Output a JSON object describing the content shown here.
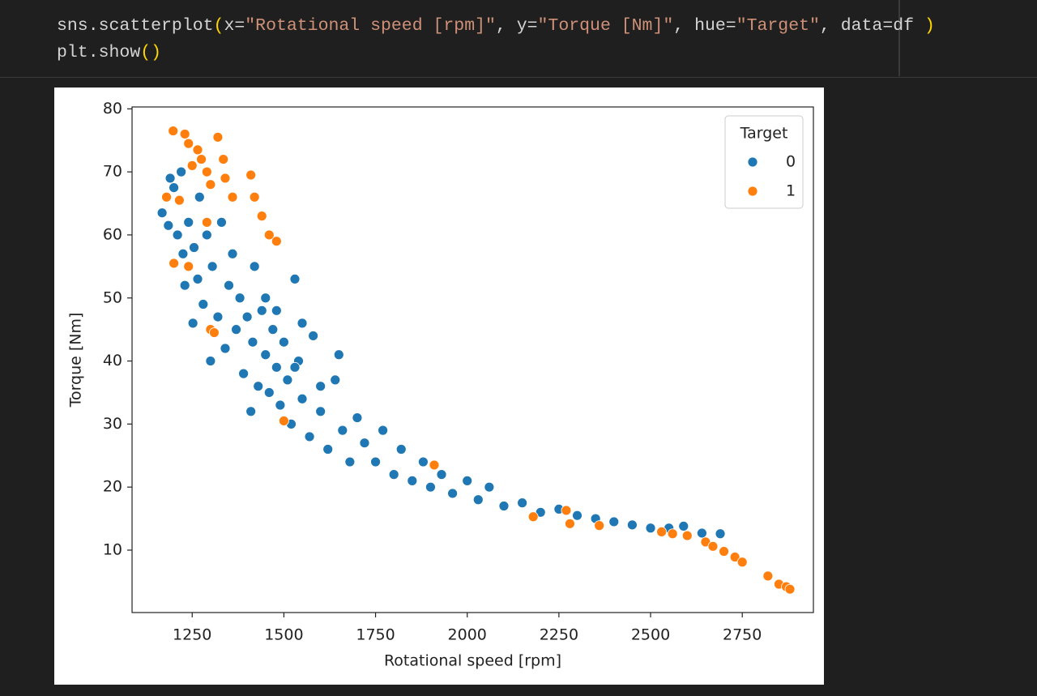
{
  "code": {
    "lines": [
      [
        "sns.scatterplot",
        "(",
        "x=",
        "\"Rotational speed [rpm]\"",
        ", y=",
        "\"Torque [Nm]\"",
        ", hue=",
        "\"Target\"",
        ", data=df ",
        ")"
      ],
      [
        "plt.show",
        "()"
      ]
    ]
  },
  "chart_data": {
    "type": "scatter",
    "xlabel": "Rotational speed [rpm]",
    "ylabel": "Torque [Nm]",
    "xlim": [
      1086,
      2944
    ],
    "ylim": [
      0.1,
      80.3
    ],
    "xticks": [
      1250,
      1500,
      1750,
      2000,
      2250,
      2500,
      2750
    ],
    "yticks": [
      10,
      20,
      30,
      40,
      50,
      60,
      70,
      80
    ],
    "legend": {
      "title": "Target",
      "corner": "upper right"
    },
    "series": [
      {
        "name": "0",
        "color": "#1f77b4",
        "x": [
          1168,
          1185,
          1190,
          1200,
          1210,
          1220,
          1225,
          1230,
          1240,
          1252,
          1255,
          1265,
          1270,
          1280,
          1290,
          1300,
          1305,
          1320,
          1330,
          1340,
          1350,
          1360,
          1370,
          1380,
          1390,
          1400,
          1410,
          1415,
          1420,
          1430,
          1440,
          1450,
          1460,
          1470,
          1480,
          1490,
          1500,
          1510,
          1520,
          1530,
          1540,
          1550,
          1570,
          1580,
          1600,
          1620,
          1640,
          1660,
          1680,
          1700,
          1720,
          1750,
          1770,
          1800,
          1820,
          1850,
          1880,
          1900,
          1930,
          1960,
          2000,
          2030,
          2060,
          2100,
          2150,
          2200,
          2250,
          2300,
          2350,
          2400,
          2450,
          2500,
          2550,
          2590,
          2640,
          2690,
          1450,
          1480,
          1550,
          1650,
          1530,
          1600
        ],
        "values": [
          63.5,
          61.5,
          69,
          67.5,
          60,
          70,
          57,
          52,
          62,
          46,
          58,
          53,
          66,
          49,
          60,
          40,
          55,
          47,
          62,
          42,
          52,
          57,
          45,
          50,
          38,
          47,
          32,
          43,
          55,
          36,
          48,
          41,
          35,
          45,
          39,
          33,
          43,
          37,
          30,
          53,
          40,
          34,
          28,
          44,
          32,
          26,
          37,
          29,
          24,
          31,
          27,
          24,
          29,
          22,
          26,
          21,
          24,
          20,
          22,
          19,
          21,
          18,
          20,
          17,
          17.5,
          16,
          16.5,
          15.5,
          15,
          14.5,
          14,
          13.5,
          13.5,
          13.8,
          12.7,
          12.6,
          50,
          48,
          46,
          41,
          39,
          36
        ]
      },
      {
        "name": "1",
        "color": "#ff7f0e",
        "x": [
          1198,
          1230,
          1240,
          1265,
          1275,
          1320,
          1335,
          1250,
          1290,
          1300,
          1340,
          1360,
          1410,
          1420,
          1440,
          1460,
          1480,
          1180,
          1215,
          1200,
          1290,
          1300,
          1310,
          1240,
          1500,
          1910,
          2180,
          2270,
          2280,
          2360,
          2530,
          2560,
          2600,
          2650,
          2670,
          2700,
          2730,
          2750,
          2820,
          2850,
          2870,
          2880
        ],
        "values": [
          76.5,
          76,
          74.5,
          73.5,
          72,
          75.5,
          72,
          71,
          70,
          68,
          69,
          66,
          69.5,
          66,
          63,
          60,
          59,
          66,
          65.5,
          55.5,
          62,
          45,
          44.5,
          55,
          30.5,
          23.5,
          15.3,
          16.3,
          14.2,
          13.9,
          12.9,
          12.6,
          12.3,
          11.3,
          10.6,
          9.8,
          8.9,
          8.1,
          5.9,
          4.6,
          4.2,
          3.8
        ]
      }
    ]
  }
}
